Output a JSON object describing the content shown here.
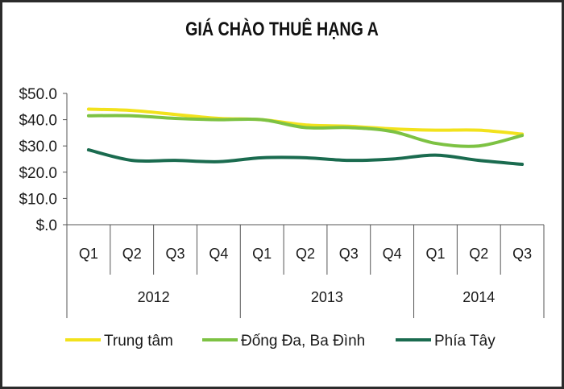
{
  "chart_data": {
    "type": "line",
    "title": "GIÁ CHÀO THUÊ HẠNG A",
    "xlabel": "",
    "ylabel": "",
    "ylim": [
      0,
      50
    ],
    "ytick_labels": [
      "$.0",
      "$10.0",
      "$20.0",
      "$30.0",
      "$40.0",
      "$50.0"
    ],
    "categories": [
      "Q1",
      "Q2",
      "Q3",
      "Q4",
      "Q1",
      "Q2",
      "Q3",
      "Q4",
      "Q1",
      "Q2",
      "Q3"
    ],
    "groups": [
      {
        "label": "2012",
        "count": 4
      },
      {
        "label": "2013",
        "count": 4
      },
      {
        "label": "2014",
        "count": 3
      }
    ],
    "series": [
      {
        "name": "Trung tâm",
        "color": "#f2e21c",
        "values": [
          44.0,
          43.5,
          42.0,
          40.5,
          40.0,
          38.0,
          37.5,
          36.5,
          36.0,
          36.0,
          34.5
        ]
      },
      {
        "name": "Đống Đa, Ba Đình",
        "color": "#7dc243",
        "values": [
          41.5,
          41.5,
          40.5,
          40.0,
          40.0,
          37.0,
          37.0,
          35.5,
          31.0,
          30.0,
          34.0
        ]
      },
      {
        "name": "Phía Tây",
        "color": "#1a6b4f",
        "values": [
          28.5,
          24.5,
          24.5,
          24.0,
          25.5,
          25.5,
          24.5,
          25.0,
          26.5,
          24.5,
          23.0
        ]
      }
    ],
    "grid": false,
    "legend_position": "bottom"
  }
}
